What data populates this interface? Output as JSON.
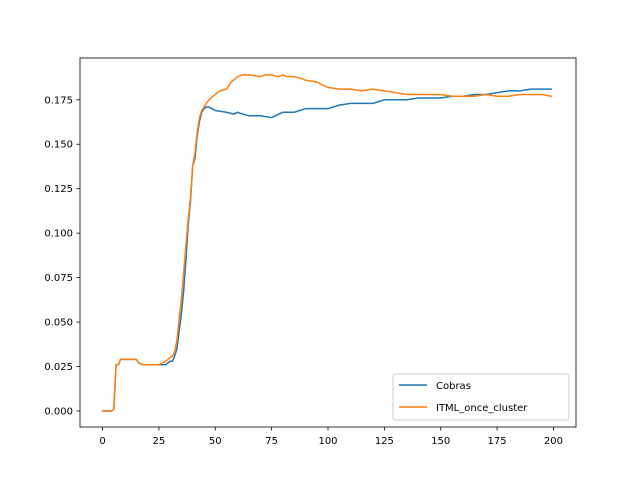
{
  "chart_data": {
    "type": "line",
    "title": "",
    "xlabel": "",
    "ylabel": "",
    "xlim": [
      -10,
      210
    ],
    "ylim": [
      -0.009,
      0.1985
    ],
    "xticks": [
      0,
      25,
      50,
      75,
      100,
      125,
      150,
      175,
      200
    ],
    "xtick_labels": [
      "0",
      "25",
      "50",
      "75",
      "100",
      "125",
      "150",
      "175",
      "200"
    ],
    "yticks": [
      0.0,
      0.025,
      0.05,
      0.075,
      0.1,
      0.125,
      0.15,
      0.175
    ],
    "ytick_labels": [
      "0.000",
      "0.025",
      "0.050",
      "0.075",
      "0.100",
      "0.125",
      "0.150",
      "0.175"
    ],
    "grid": false,
    "legend_position": "lower-right",
    "series": [
      {
        "name": "Cobras",
        "color": "#1f77b4",
        "points": [
          [
            0,
            0.0
          ],
          [
            2,
            0.0
          ],
          [
            4,
            0.0
          ],
          [
            5,
            0.001
          ],
          [
            6,
            0.026
          ],
          [
            7,
            0.026
          ],
          [
            8,
            0.029
          ],
          [
            10,
            0.029
          ],
          [
            15,
            0.029
          ],
          [
            16,
            0.027
          ],
          [
            18,
            0.026
          ],
          [
            20,
            0.026
          ],
          [
            25,
            0.026
          ],
          [
            28,
            0.026
          ],
          [
            30,
            0.028
          ],
          [
            31,
            0.028
          ],
          [
            32,
            0.031
          ],
          [
            33,
            0.035
          ],
          [
            34,
            0.045
          ],
          [
            35,
            0.055
          ],
          [
            36,
            0.068
          ],
          [
            37,
            0.085
          ],
          [
            38,
            0.105
          ],
          [
            39,
            0.118
          ],
          [
            40,
            0.138
          ],
          [
            41,
            0.142
          ],
          [
            42,
            0.155
          ],
          [
            43,
            0.163
          ],
          [
            44,
            0.168
          ],
          [
            45,
            0.17
          ],
          [
            46,
            0.171
          ],
          [
            47,
            0.171
          ],
          [
            50,
            0.169
          ],
          [
            55,
            0.168
          ],
          [
            58,
            0.167
          ],
          [
            60,
            0.168
          ],
          [
            62,
            0.167
          ],
          [
            65,
            0.166
          ],
          [
            70,
            0.166
          ],
          [
            75,
            0.165
          ],
          [
            80,
            0.168
          ],
          [
            85,
            0.168
          ],
          [
            90,
            0.17
          ],
          [
            95,
            0.17
          ],
          [
            100,
            0.17
          ],
          [
            105,
            0.172
          ],
          [
            110,
            0.173
          ],
          [
            115,
            0.173
          ],
          [
            120,
            0.173
          ],
          [
            125,
            0.175
          ],
          [
            130,
            0.175
          ],
          [
            135,
            0.175
          ],
          [
            140,
            0.176
          ],
          [
            145,
            0.176
          ],
          [
            150,
            0.176
          ],
          [
            155,
            0.177
          ],
          [
            160,
            0.177
          ],
          [
            165,
            0.178
          ],
          [
            170,
            0.178
          ],
          [
            175,
            0.179
          ],
          [
            180,
            0.18
          ],
          [
            185,
            0.18
          ],
          [
            190,
            0.181
          ],
          [
            195,
            0.181
          ],
          [
            199,
            0.181
          ]
        ]
      },
      {
        "name": "ITML_once_cluster",
        "color": "#ff7f0e",
        "points": [
          [
            0,
            0.0
          ],
          [
            2,
            0.0
          ],
          [
            4,
            0.0
          ],
          [
            5,
            0.001
          ],
          [
            6,
            0.026
          ],
          [
            7,
            0.026
          ],
          [
            8,
            0.029
          ],
          [
            10,
            0.029
          ],
          [
            15,
            0.029
          ],
          [
            16,
            0.027
          ],
          [
            18,
            0.026
          ],
          [
            20,
            0.026
          ],
          [
            25,
            0.026
          ],
          [
            28,
            0.028
          ],
          [
            30,
            0.03
          ],
          [
            31,
            0.031
          ],
          [
            32,
            0.033
          ],
          [
            33,
            0.04
          ],
          [
            34,
            0.052
          ],
          [
            35,
            0.063
          ],
          [
            36,
            0.078
          ],
          [
            37,
            0.093
          ],
          [
            38,
            0.108
          ],
          [
            39,
            0.12
          ],
          [
            40,
            0.138
          ],
          [
            41,
            0.145
          ],
          [
            42,
            0.157
          ],
          [
            43,
            0.165
          ],
          [
            44,
            0.169
          ],
          [
            45,
            0.171
          ],
          [
            46,
            0.173
          ],
          [
            48,
            0.176
          ],
          [
            50,
            0.178
          ],
          [
            52,
            0.18
          ],
          [
            55,
            0.181
          ],
          [
            57,
            0.185
          ],
          [
            58,
            0.186
          ],
          [
            60,
            0.188
          ],
          [
            62,
            0.189
          ],
          [
            65,
            0.189
          ],
          [
            70,
            0.188
          ],
          [
            72,
            0.189
          ],
          [
            75,
            0.189
          ],
          [
            78,
            0.188
          ],
          [
            80,
            0.189
          ],
          [
            82,
            0.188
          ],
          [
            85,
            0.188
          ],
          [
            88,
            0.187
          ],
          [
            90,
            0.186
          ],
          [
            95,
            0.185
          ],
          [
            98,
            0.183
          ],
          [
            100,
            0.182
          ],
          [
            105,
            0.181
          ],
          [
            110,
            0.181
          ],
          [
            115,
            0.18
          ],
          [
            120,
            0.181
          ],
          [
            125,
            0.18
          ],
          [
            130,
            0.179
          ],
          [
            135,
            0.178
          ],
          [
            140,
            0.178
          ],
          [
            145,
            0.178
          ],
          [
            150,
            0.178
          ],
          [
            155,
            0.177
          ],
          [
            160,
            0.177
          ],
          [
            165,
            0.177
          ],
          [
            170,
            0.178
          ],
          [
            175,
            0.177
          ],
          [
            180,
            0.177
          ],
          [
            185,
            0.178
          ],
          [
            190,
            0.178
          ],
          [
            195,
            0.178
          ],
          [
            199,
            0.177
          ]
        ]
      }
    ]
  }
}
